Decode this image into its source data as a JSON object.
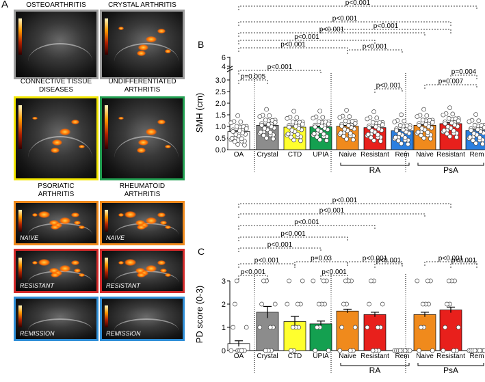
{
  "panel_a": {
    "letter": "A",
    "images": [
      {
        "key": "oa",
        "title": "OSTEOARTHRITIS",
        "caption": "",
        "color": "#9e9e9e",
        "pd": 0
      },
      {
        "key": "crystal",
        "title": "CRYSTAL ARTHRITIS",
        "caption": "",
        "color": "#9e9e9e",
        "pd": 2
      },
      {
        "key": "ctd",
        "title": "CONNECTIVE TISSUE\nDISEASES",
        "caption": "",
        "color": "#f2e600",
        "pd": 2
      },
      {
        "key": "upia",
        "title": "UNDIFFERENTIATED\nARTHRITIS",
        "caption": "",
        "color": "#22a052",
        "pd": 2
      },
      {
        "key": "psa_naive",
        "title": "PSORIATIC\nARTHRITIS",
        "caption": "NAIVE",
        "color": "#f08a1c",
        "pd": 3
      },
      {
        "key": "ra_naive",
        "title": "RHEUMATOID\nARTHRITIS",
        "caption": "NAIVE",
        "color": "#f08a1c",
        "pd": 3
      },
      {
        "key": "psa_resistant",
        "title": "",
        "caption": "RESISTANT",
        "color": "#d42a2a",
        "pd": 3
      },
      {
        "key": "ra_resistant",
        "title": "",
        "caption": "RESISTANT",
        "color": "#d42a2a",
        "pd": 3
      },
      {
        "key": "psa_remission",
        "title": "",
        "caption": "REMISSION",
        "color": "#2f8fd8",
        "pd": 0
      },
      {
        "key": "ra_remission",
        "title": "",
        "caption": "REMISSION",
        "color": "#2f8fd8",
        "pd": 0
      }
    ]
  },
  "chart_data": [
    {
      "panel": "B",
      "type": "bar",
      "ylabel": "SMH (cm)",
      "categories": [
        "OA",
        "Crystal",
        "CTD",
        "UPIA",
        "Naive",
        "Resistant",
        "Rem",
        "Naive",
        "Resistant",
        "Rem"
      ],
      "colors": [
        "#ffffff",
        "#8c8c8c",
        "#ffff2e",
        "#14a050",
        "#f08a1c",
        "#e8201c",
        "#2a7fe0",
        "#f08a1c",
        "#e8201c",
        "#2a7fe0"
      ],
      "values": [
        0.78,
        1.05,
        0.97,
        0.98,
        1.01,
        0.95,
        0.82,
        1.05,
        1.12,
        0.83
      ],
      "errors": [
        0.04,
        0.05,
        0.05,
        0.03,
        0.03,
        0.03,
        0.04,
        0.03,
        0.04,
        0.05
      ],
      "group_labels": [
        {
          "label": "RA",
          "from": 4,
          "to": 6
        },
        {
          "label": "PsA",
          "from": 7,
          "to": 9
        }
      ],
      "yticks": [
        "0.0",
        "0.5",
        "1.0",
        "1.5",
        "2.0",
        "2.5",
        "3.0",
        "4",
        "6"
      ],
      "ytick_values": [
        0,
        0.5,
        1,
        1.5,
        2,
        2.5,
        3,
        4,
        6
      ],
      "axis_break": "3-6",
      "comparisons": [
        {
          "from": 0,
          "to": 1,
          "label": "p=0.005"
        },
        {
          "from": 0,
          "to": 3,
          "label": "p<0.001"
        },
        {
          "from": 0,
          "to": 4,
          "label": "p<0.001"
        },
        {
          "from": 0,
          "to": 5,
          "label": "p<0.001"
        },
        {
          "from": 5,
          "to": 6,
          "label": "p<0.001"
        },
        {
          "from": 4,
          "to": 6,
          "label": "p<0.001"
        },
        {
          "from": 3,
          "to": 8,
          "label": "p<0.001"
        },
        {
          "from": 8,
          "to": 9,
          "label": "p=0.004"
        },
        {
          "from": 7,
          "to": 9,
          "label": "p=0.007"
        },
        {
          "from": 0,
          "to": 7,
          "label": "p<0.001"
        },
        {
          "from": 0,
          "to": 8,
          "label": "p<0.001"
        },
        {
          "from": 0,
          "to": 9,
          "label": "p<0.001"
        }
      ]
    },
    {
      "panel": "C",
      "type": "bar",
      "ylabel": "PD score (0-3)",
      "categories": [
        "OA",
        "Crystal",
        "CTD",
        "UPIA",
        "Naive",
        "Resistant",
        "Rem",
        "Naive",
        "Resistant",
        "Rem"
      ],
      "colors": [
        "#ffffff",
        "#8c8c8c",
        "#ffff2e",
        "#14a050",
        "#f08a1c",
        "#e8201c",
        "#2a7fe0",
        "#f08a1c",
        "#e8201c",
        "#2a7fe0"
      ],
      "values": [
        0.3,
        1.65,
        1.25,
        1.15,
        1.7,
        1.55,
        0.0,
        1.55,
        1.75,
        0.0
      ],
      "errors": [
        0.12,
        0.25,
        0.22,
        0.12,
        0.08,
        0.1,
        0.0,
        0.1,
        0.12,
        0.0
      ],
      "group_labels": [
        {
          "label": "RA",
          "from": 4,
          "to": 6
        },
        {
          "label": "PsA",
          "from": 7,
          "to": 9
        }
      ],
      "yticks": [
        "0",
        "1",
        "2",
        "3"
      ],
      "ytick_values": [
        0,
        1,
        2,
        3
      ],
      "comparisons": [
        {
          "from": 0,
          "to": 1,
          "label": "p<0.001"
        },
        {
          "from": 0,
          "to": 2,
          "label": "p<0.001"
        },
        {
          "from": 2,
          "to": 4,
          "label": "p=0.03"
        },
        {
          "from": 3,
          "to": 4,
          "label": "p<0.001"
        },
        {
          "from": 5,
          "to": 6,
          "label": "p<0.001"
        },
        {
          "from": 4,
          "to": 6,
          "label": "p<0.001"
        },
        {
          "from": 8,
          "to": 9,
          "label": "p<0.001"
        },
        {
          "from": 7,
          "to": 9,
          "label": "p<0.001"
        },
        {
          "from": 0,
          "to": 3,
          "label": "p<0.001"
        },
        {
          "from": 0,
          "to": 4,
          "label": "p<0.001"
        },
        {
          "from": 0,
          "to": 5,
          "label": "p<0.001"
        },
        {
          "from": 0,
          "to": 7,
          "label": "p<0.001"
        },
        {
          "from": 0,
          "to": 8,
          "label": "p<0.001"
        }
      ]
    }
  ]
}
